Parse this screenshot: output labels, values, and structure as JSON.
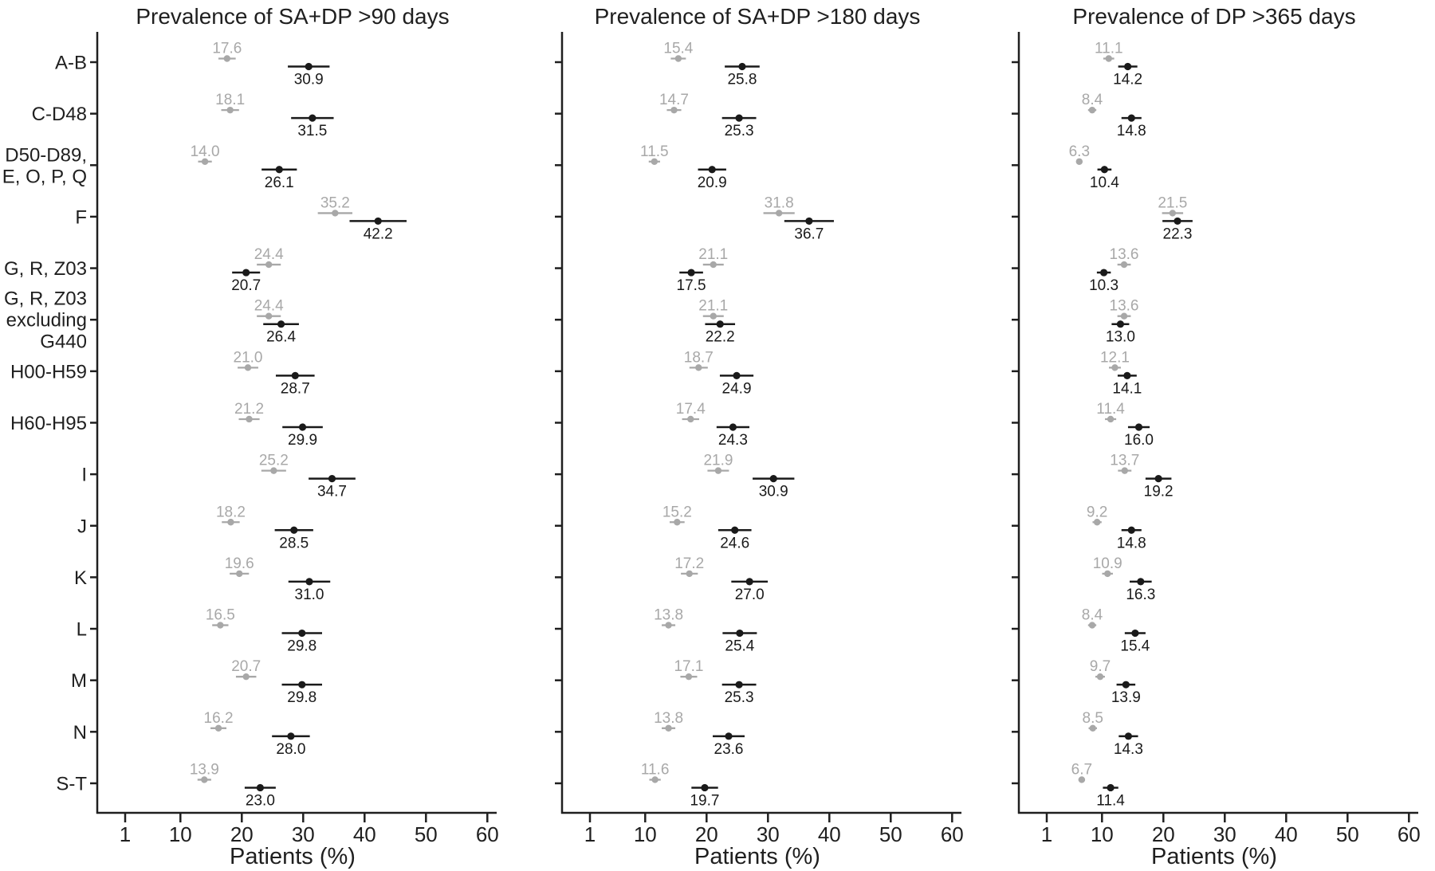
{
  "chart_data": {
    "type": "scatter",
    "variant": "horizontal dot-and-error forest plot, 3 facets, two estimates per category",
    "xlabel": "Patients (%)",
    "xticks": [
      1,
      10,
      20,
      30,
      40,
      50,
      60
    ],
    "xlim": [
      0,
      63
    ],
    "grid": false,
    "legend": "none",
    "categories": [
      [
        "A-B"
      ],
      [
        "C-D48"
      ],
      [
        "D50-D89,",
        "E, O, P, Q"
      ],
      [
        "F"
      ],
      [
        "G, R, Z03"
      ],
      [
        "G, R, Z03",
        "excluding",
        "G440"
      ],
      [
        "H00-H59"
      ],
      [
        "H60-H95"
      ],
      [
        "I"
      ],
      [
        "J"
      ],
      [
        "K"
      ],
      [
        "L"
      ],
      [
        "M"
      ],
      [
        "N"
      ],
      [
        "S-T"
      ]
    ],
    "panels": [
      {
        "title": "Prevalence of SA+DP >90 days",
        "series": [
          {
            "name": "gray-estimate",
            "color": "#a8a8a8",
            "values": [
              17.6,
              18.1,
              14.0,
              35.2,
              24.4,
              24.4,
              21.0,
              21.2,
              25.2,
              18.2,
              19.6,
              16.5,
              20.7,
              16.2,
              13.9
            ]
          },
          {
            "name": "black-estimate",
            "color": "#1a1a1a",
            "values": [
              30.9,
              31.5,
              26.1,
              42.2,
              20.7,
              26.4,
              28.7,
              29.9,
              34.7,
              28.5,
              31.0,
              29.8,
              29.8,
              28.0,
              23.0
            ]
          }
        ]
      },
      {
        "title": "Prevalence of SA+DP >180 days",
        "series": [
          {
            "name": "gray-estimate",
            "color": "#a8a8a8",
            "values": [
              15.4,
              14.7,
              11.5,
              31.8,
              21.1,
              21.1,
              18.7,
              17.4,
              21.9,
              15.2,
              17.2,
              13.8,
              17.1,
              13.8,
              11.6
            ]
          },
          {
            "name": "black-estimate",
            "color": "#1a1a1a",
            "values": [
              25.8,
              25.3,
              20.9,
              36.7,
              17.5,
              22.2,
              24.9,
              24.3,
              30.9,
              24.6,
              27.0,
              25.4,
              25.3,
              23.6,
              19.7
            ]
          }
        ]
      },
      {
        "title": "Prevalence of DP >365 days",
        "series": [
          {
            "name": "gray-estimate",
            "color": "#a8a8a8",
            "values": [
              11.1,
              8.4,
              6.3,
              21.5,
              13.6,
              13.6,
              12.1,
              11.4,
              13.7,
              9.2,
              10.9,
              8.4,
              9.7,
              8.5,
              6.7
            ]
          },
          {
            "name": "black-estimate",
            "color": "#1a1a1a",
            "values": [
              14.2,
              14.8,
              10.4,
              22.3,
              10.3,
              13.0,
              14.1,
              16.0,
              19.2,
              14.8,
              16.3,
              15.4,
              13.9,
              14.3,
              11.4
            ]
          }
        ]
      }
    ],
    "error_halfwidth_frac": {
      "gray": 0.08,
      "black": 0.11
    },
    "colors": {
      "gray": "#a8a8a8",
      "black": "#1a1a1a",
      "axis": "#1f1f1f"
    }
  }
}
